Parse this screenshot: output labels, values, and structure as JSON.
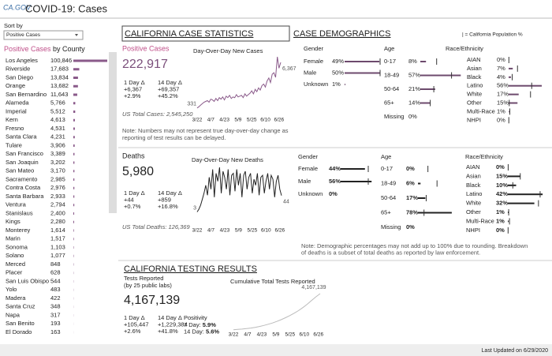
{
  "header": {
    "logo": "CA.GOV",
    "title": "COVID-19: Cases"
  },
  "sidebar": {
    "sort_label": "Sort by",
    "sort_value": "Positive Cases",
    "heading_metric": "Positive Cases",
    "heading_rest": "by County",
    "counties": [
      {
        "name": "Los Angeles",
        "cases": 100846,
        "label": "100,846"
      },
      {
        "name": "Riverside",
        "cases": 17683,
        "label": "17,683"
      },
      {
        "name": "San Diego",
        "cases": 13834,
        "label": "13,834"
      },
      {
        "name": "Orange",
        "cases": 13682,
        "label": "13,682"
      },
      {
        "name": "San Bernardino",
        "cases": 11643,
        "label": "11,643"
      },
      {
        "name": "Alameda",
        "cases": 5766,
        "label": "5,766"
      },
      {
        "name": "Imperial",
        "cases": 5512,
        "label": "5,512"
      },
      {
        "name": "Kern",
        "cases": 4613,
        "label": "4,613"
      },
      {
        "name": "Fresno",
        "cases": 4531,
        "label": "4,531"
      },
      {
        "name": "Santa Clara",
        "cases": 4231,
        "label": "4,231"
      },
      {
        "name": "Tulare",
        "cases": 3906,
        "label": "3,906"
      },
      {
        "name": "San Francisco",
        "cases": 3389,
        "label": "3,389"
      },
      {
        "name": "San Joaquin",
        "cases": 3202,
        "label": "3,202"
      },
      {
        "name": "San Mateo",
        "cases": 3170,
        "label": "3,170"
      },
      {
        "name": "Sacramento",
        "cases": 2985,
        "label": "2,985"
      },
      {
        "name": "Contra Costa",
        "cases": 2976,
        "label": "2,976"
      },
      {
        "name": "Santa Barbara",
        "cases": 2933,
        "label": "2,933"
      },
      {
        "name": "Ventura",
        "cases": 2794,
        "label": "2,794"
      },
      {
        "name": "Stanislaus",
        "cases": 2400,
        "label": "2,400"
      },
      {
        "name": "Kings",
        "cases": 2280,
        "label": "2,280"
      },
      {
        "name": "Monterey",
        "cases": 1614,
        "label": "1,614"
      },
      {
        "name": "Marin",
        "cases": 1517,
        "label": "1,517"
      },
      {
        "name": "Sonoma",
        "cases": 1103,
        "label": "1,103"
      },
      {
        "name": "Solano",
        "cases": 1077,
        "label": "1,077"
      },
      {
        "name": "Merced",
        "cases": 848,
        "label": "848"
      },
      {
        "name": "Placer",
        "cases": 628,
        "label": "628"
      },
      {
        "name": "San Luis Obispo",
        "cases": 544,
        "label": "544"
      },
      {
        "name": "Yolo",
        "cases": 483,
        "label": "483"
      },
      {
        "name": "Madera",
        "cases": 422,
        "label": "422"
      },
      {
        "name": "Santa Cruz",
        "cases": 348,
        "label": "348"
      },
      {
        "name": "Napa",
        "cases": 317,
        "label": "317"
      },
      {
        "name": "San Benito",
        "cases": 193,
        "label": "193"
      },
      {
        "name": "El Dorado",
        "cases": 163,
        "label": "163"
      }
    ]
  },
  "demographics_heading": "CASE DEMOGRAPHICS",
  "population_legend": "| = California Population %",
  "cases": {
    "heading": "CALIFORNIA CASE STATISTICS",
    "metric": "Positive Cases",
    "total": "222,917",
    "deltas": [
      {
        "label": "1 Day Δ",
        "count": "+6,367",
        "pct": "+2.9%"
      },
      {
        "label": "14 Day Δ",
        "count": "+69,357",
        "pct": "+45.2%"
      }
    ],
    "us_total": "US Total Cases: 2,545,250",
    "note": [
      "Note: Numbers may not represent true day-over-day change as",
      "reporting of test results can be delayed."
    ],
    "chart": {
      "title": "Day-Over-Day New Cases",
      "x_labels": [
        "3/22",
        "4/7",
        "4/23",
        "5/9",
        "5/25",
        "6/10",
        "6/26"
      ],
      "first_label": "331",
      "last_label": "6,367",
      "values": [
        331,
        500,
        700,
        900,
        1100,
        1200,
        1300,
        1100,
        1500,
        1400,
        1200,
        1600,
        1300,
        1700,
        1500,
        1800,
        1400,
        1900,
        1700,
        2000,
        1600,
        1800,
        1700,
        2100,
        1800,
        1900,
        2000,
        1700,
        2200,
        1900,
        2100,
        2300,
        2600,
        2200,
        2800,
        2500,
        3000,
        2700,
        3300,
        3500,
        3100,
        3900,
        4300,
        3700,
        4800,
        5000,
        4400,
        7100,
        5600,
        6367
      ]
    },
    "demographics": [
      {
        "title": "Gender",
        "rows": [
          {
            "label": "Female",
            "pct": 49,
            "pct_label": "49%",
            "population": 50
          },
          {
            "label": "Male",
            "pct": 50,
            "pct_label": "50%",
            "population": 50
          },
          {
            "label": "Unknown",
            "pct": 1,
            "pct_label": "1%"
          }
        ]
      },
      {
        "title": "Age",
        "rows": [
          {
            "label": "0-17",
            "pct": 8,
            "pct_label": "8%",
            "population": 23
          },
          {
            "label": "18-49",
            "pct": 57,
            "pct_label": "57%",
            "population": 44
          },
          {
            "label": "50-64",
            "pct": 21,
            "pct_label": "21%",
            "population": 19
          },
          {
            "label": "65+",
            "pct": 14,
            "pct_label": "14%",
            "population": 14
          },
          {
            "label": "Missing",
            "pct": 0,
            "pct_label": "0%"
          }
        ]
      },
      {
        "title": "Race/Ethnicity",
        "rows": [
          {
            "label": "AIAN",
            "pct": 0,
            "pct_label": "0%",
            "population": 0.4
          },
          {
            "label": "Asian",
            "pct": 7,
            "pct_label": "7%",
            "population": 15
          },
          {
            "label": "Black",
            "pct": 4,
            "pct_label": "4%",
            "population": 6
          },
          {
            "label": "Latino",
            "pct": 56,
            "pct_label": "56%",
            "population": 39
          },
          {
            "label": "White",
            "pct": 17,
            "pct_label": "17%",
            "population": 37
          },
          {
            "label": "Other",
            "pct": 15,
            "pct_label": "15%",
            "population": 1
          },
          {
            "label": "Multi-Race",
            "pct": 1,
            "pct_label": "1%",
            "population": 2
          },
          {
            "label": "NHPI",
            "pct": 0,
            "pct_label": "0%",
            "population": 0.3
          }
        ]
      }
    ]
  },
  "deaths": {
    "metric": "Deaths",
    "total": "5,980",
    "deltas": [
      {
        "label": "1 Day Δ",
        "count": "+44",
        "pct": "+0.7%"
      },
      {
        "label": "14 Day Δ",
        "count": "+859",
        "pct": "+16.8%"
      }
    ],
    "us_total": "US Total Deaths: 126,369",
    "chart": {
      "title": "Day-Over-Day New Deaths",
      "x_labels": [
        "3/22",
        "4/7",
        "4/23",
        "5/9",
        "5/25",
        "6/10",
        "6/26"
      ],
      "first_label": "3",
      "last_label": "44",
      "values": [
        3,
        10,
        20,
        35,
        50,
        70,
        45,
        90,
        60,
        110,
        40,
        100,
        80,
        115,
        50,
        105,
        90,
        60,
        110,
        45,
        95,
        100,
        55,
        110,
        70,
        100,
        40,
        95,
        105,
        60,
        90,
        100,
        50,
        85,
        70,
        100,
        45,
        90,
        95,
        50,
        80,
        100,
        60,
        95,
        85,
        40,
        80,
        95,
        60,
        44
      ]
    },
    "demographics": [
      {
        "title": "Gender",
        "rows": [
          {
            "label": "Female",
            "pct": 44,
            "pct_label": "44%",
            "population": 50
          },
          {
            "label": "Male",
            "pct": 56,
            "pct_label": "56%",
            "population": 50
          },
          {
            "label": "Unknown",
            "pct": 0,
            "pct_label": "0%"
          }
        ]
      },
      {
        "title": "Age",
        "rows": [
          {
            "label": "0-17",
            "pct": 0,
            "pct_label": "0%",
            "population": 23
          },
          {
            "label": "18-49",
            "pct": 6,
            "pct_label": "6%",
            "population": 44
          },
          {
            "label": "50-64",
            "pct": 17,
            "pct_label": "17%",
            "population": 19
          },
          {
            "label": "65+",
            "pct": 78,
            "pct_label": "78%",
            "population": 14
          },
          {
            "label": "Missing",
            "pct": 0,
            "pct_label": "0%"
          }
        ]
      },
      {
        "title": "Race/Ethnicity",
        "rows": [
          {
            "label": "AIAN",
            "pct": 0,
            "pct_label": "0%",
            "population": 0.4
          },
          {
            "label": "Asian",
            "pct": 15,
            "pct_label": "15%",
            "population": 15
          },
          {
            "label": "Black",
            "pct": 10,
            "pct_label": "10%",
            "population": 6
          },
          {
            "label": "Latino",
            "pct": 42,
            "pct_label": "42%",
            "population": 39
          },
          {
            "label": "White",
            "pct": 32,
            "pct_label": "32%",
            "population": 37
          },
          {
            "label": "Other",
            "pct": 1,
            "pct_label": "1%",
            "population": 1
          },
          {
            "label": "Multi-Race",
            "pct": 1,
            "pct_label": "1%",
            "population": 2
          },
          {
            "label": "NHPI",
            "pct": 0,
            "pct_label": "0%",
            "population": 0.3
          }
        ]
      }
    ],
    "note": [
      "Note: Demographic percentages may not add up to 100% due to rounding. Breakdown",
      "of deaths is a subset of total deaths as reported by law enforcement."
    ]
  },
  "testing": {
    "heading": "CALIFORNIA TESTING RESULTS",
    "metric": "Tests Reported",
    "metric_sub": "(by 25 public labs)",
    "total": "4,167,139",
    "deltas": [
      {
        "label": "1 Day Δ",
        "count": "+105,447",
        "pct": "+2.6%"
      },
      {
        "label": "14 Day Δ",
        "count": "+1,229,384",
        "pct": "+41.8%"
      }
    ],
    "positivity": {
      "label": "Positivity",
      "items": [
        {
          "label": "7 Day:",
          "value": "5.9%"
        },
        {
          "label": "14 Day:",
          "value": "5.6%"
        }
      ]
    },
    "chart": {
      "title": "Cumulative Total Tests Reported",
      "x_labels": [
        "3/22",
        "4/7",
        "4/23",
        "5/9",
        "5/25",
        "6/10",
        "6/26"
      ],
      "last_label": "4,167,139",
      "values": [
        30000,
        60000,
        100000,
        150000,
        220000,
        300000,
        400000,
        520000,
        650000,
        800000,
        980000,
        1180000,
        1400000,
        1650000,
        1920000,
        2220000,
        2560000,
        2940000,
        3380000,
        3800000,
        4167139
      ]
    }
  },
  "footer": {
    "updated": "Last Updated on 6/29/2020"
  }
}
